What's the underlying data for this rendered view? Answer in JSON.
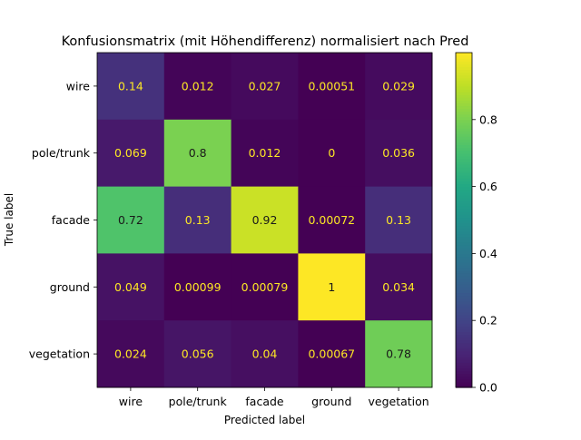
{
  "chart_data": {
    "type": "heatmap",
    "title": "Konfusionsmatrix (mit Höhendifferenz) normalisiert nach Pred",
    "xlabel": "Predicted label",
    "ylabel": "True label",
    "x_categories": [
      "wire",
      "pole/trunk",
      "facade",
      "ground",
      "vegetation"
    ],
    "y_categories": [
      "wire",
      "pole/trunk",
      "facade",
      "ground",
      "vegetation"
    ],
    "values": [
      [
        0.14,
        0.012,
        0.027,
        0.00051,
        0.029
      ],
      [
        0.069,
        0.8,
        0.012,
        0,
        0.036
      ],
      [
        0.72,
        0.13,
        0.92,
        0.00072,
        0.13
      ],
      [
        0.049,
        0.00099,
        0.00079,
        1,
        0.034
      ],
      [
        0.024,
        0.056,
        0.04,
        0.00067,
        0.78
      ]
    ],
    "value_labels": [
      [
        "0.14",
        "0.012",
        "0.027",
        "0.00051",
        "0.029"
      ],
      [
        "0.069",
        "0.8",
        "0.012",
        "0",
        "0.036"
      ],
      [
        "0.72",
        "0.13",
        "0.92",
        "0.00072",
        "0.13"
      ],
      [
        "0.049",
        "0.00099",
        "0.00079",
        "1",
        "0.034"
      ],
      [
        "0.024",
        "0.056",
        "0.04",
        "0.00067",
        "0.78"
      ]
    ],
    "colormap": "viridis",
    "colorbar": {
      "range": [
        0,
        1
      ],
      "ticks": [
        0.0,
        0.2,
        0.4,
        0.6,
        0.8
      ],
      "tick_labels": [
        "0.0",
        "0.2",
        "0.4",
        "0.6",
        "0.8"
      ]
    },
    "text_colors": {
      "light": "#fde725",
      "dark": "#1a1a1a"
    }
  }
}
